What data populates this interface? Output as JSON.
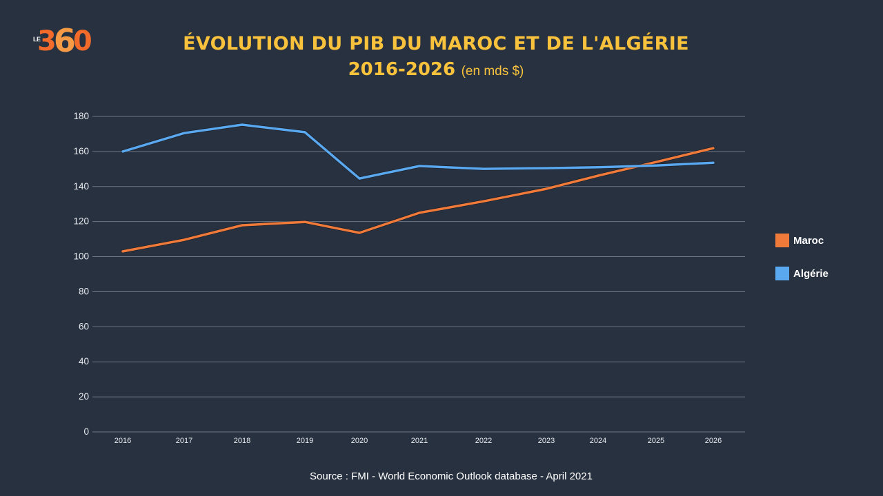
{
  "logo": {
    "prefix": "LE",
    "number_parts": [
      "3",
      "6",
      "0"
    ]
  },
  "header": {
    "title_line1": "ÉVOLUTION DU PIB DU MAROC ET DE L'ALGÉRIE",
    "title_years": "2016-2026",
    "title_unit": "(en mds $)"
  },
  "source": "Source : FMI - World Economic Outlook database - April 2021",
  "colors": {
    "background": "#283140",
    "title": "#f9c23c",
    "maroc": "#f07a3a",
    "algerie": "#5aa8ef",
    "grid": "#6e7684"
  },
  "chart_data": {
    "type": "line",
    "title": "ÉVOLUTION DU PIB DU MAROC ET DE L'ALGÉRIE 2016-2026 (en mds $)",
    "xlabel": "",
    "ylabel": "",
    "x": [
      "2016",
      "2017",
      "2018",
      "2019",
      "2020",
      "2021",
      "2022",
      "2023",
      "2024",
      "2025",
      "2026"
    ],
    "ylim": [
      0,
      180
    ],
    "yticks": [
      0,
      20,
      40,
      60,
      80,
      100,
      120,
      140,
      160,
      180
    ],
    "grid": true,
    "legend_position": "right",
    "series": [
      {
        "name": "Maroc",
        "color": "#f07a3a",
        "values": [
          103.0,
          109.6,
          117.9,
          119.8,
          113.6,
          125.0,
          131.6,
          138.7,
          146.2,
          154.0,
          161.9
        ]
      },
      {
        "name": "Algérie",
        "color": "#5aa8ef",
        "values": [
          160.0,
          170.5,
          175.3,
          171.0,
          144.6,
          151.7,
          150.1,
          150.5,
          151.0,
          152.0,
          153.6
        ]
      }
    ]
  }
}
